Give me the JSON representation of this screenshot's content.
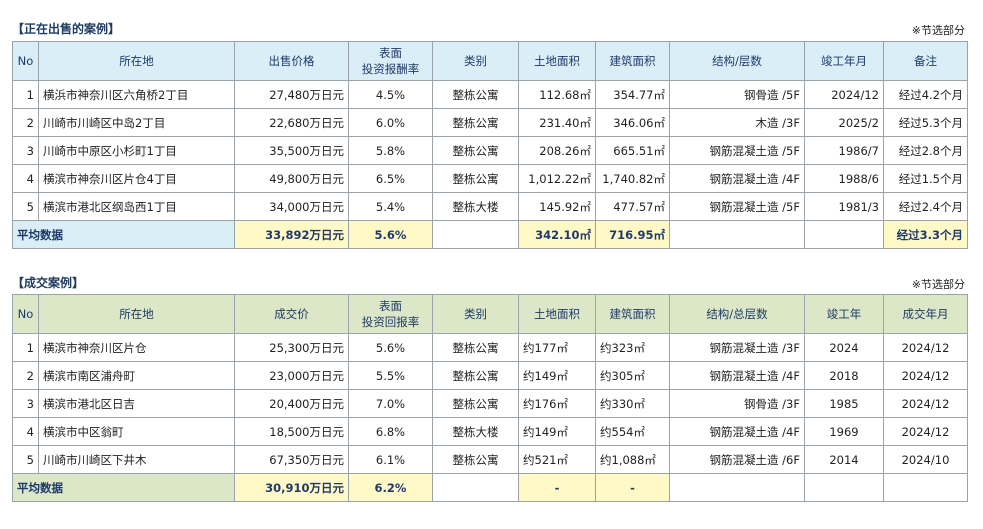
{
  "section1": {
    "title": "【正在出售的案例】",
    "note": "※节选部分",
    "headers": [
      "No",
      "所在地",
      "出售价格",
      "表面\n投资报酬率",
      "类别",
      "土地面积",
      "建筑面积",
      "结构/层数",
      "竣工年月",
      "备注"
    ],
    "rows": [
      [
        "1",
        "横浜市神奈川区六角桥2丁目",
        "27,480万日元",
        "4.5%",
        "整栋公寓",
        "112.68㎡",
        "354.77㎡",
        "钢骨造 /5F",
        "2024/12",
        "经过4.2个月"
      ],
      [
        "2",
        "川崎市川崎区中岛2丁目",
        "22,680万日元",
        "6.0%",
        "整栋公寓",
        "231.40㎡",
        "346.06㎡",
        "木造 /3F",
        "2025/2",
        "经过5.3个月"
      ],
      [
        "3",
        "川崎市中原区小杉町1丁目",
        "35,500万日元",
        "5.8%",
        "整栋公寓",
        "208.26㎡",
        "665.51㎡",
        "钢筋混凝土造 /5F",
        "1986/7",
        "经过2.8个月"
      ],
      [
        "4",
        "横滨市神奈川区片仓4丁目",
        "49,800万日元",
        "6.5%",
        "整栋公寓",
        "1,012.22㎡",
        "1,740.82㎡",
        "钢筋混凝土造 /4F",
        "1988/6",
        "经过1.5个月"
      ],
      [
        "5",
        "横滨市港北区纲岛西1丁目",
        "34,000万日元",
        "5.4%",
        "整栋大楼",
        "145.92㎡",
        "477.57㎡",
        "钢筋混凝土造 /5F",
        "1981/3",
        "经过2.4个月"
      ]
    ],
    "avg": {
      "label": "平均数据",
      "price": "33,892万日元",
      "yield": "5.6%",
      "land": "342.10㎡",
      "building": "716.95㎡",
      "note": "经过3.3个月"
    }
  },
  "section2": {
    "title": "【成交案例】",
    "note": "※节选部分",
    "headers": [
      "No",
      "所在地",
      "成交价",
      "表面\n投资回报率",
      "类别",
      "土地面积",
      "建筑面积",
      "结构/总层数",
      "竣工年",
      "成交年月"
    ],
    "rows": [
      [
        "1",
        "横滨市神奈川区片仓",
        "25,300万日元",
        "5.6%",
        "整栋公寓",
        "约177㎡",
        "约323㎡",
        "钢筋混凝土造 /3F",
        "2024",
        "2024/12"
      ],
      [
        "2",
        "横滨市南区浦舟町",
        "23,000万日元",
        "5.5%",
        "整栋公寓",
        "约149㎡",
        "约305㎡",
        "钢筋混凝土造 /4F",
        "2018",
        "2024/12"
      ],
      [
        "3",
        "横滨市港北区日吉",
        "20,400万日元",
        "7.0%",
        "整栋公寓",
        "约176㎡",
        "约330㎡",
        "钢骨造 /3F",
        "1985",
        "2024/12"
      ],
      [
        "4",
        "横滨市中区翁町",
        "18,500万日元",
        "6.8%",
        "整栋大楼",
        "约149㎡",
        "约554㎡",
        "钢筋混凝土造 /4F",
        "1969",
        "2024/12"
      ],
      [
        "5",
        "川崎市川崎区下井木",
        "67,350万日元",
        "6.1%",
        "整栋公寓",
        "约521㎡",
        "约1,088㎡",
        "钢筋混凝土造 /6F",
        "2014",
        "2024/10"
      ]
    ],
    "avg": {
      "label": "平均数据",
      "price": "30,910万日元",
      "yield": "6.2%",
      "land": "-",
      "building": "-"
    }
  }
}
